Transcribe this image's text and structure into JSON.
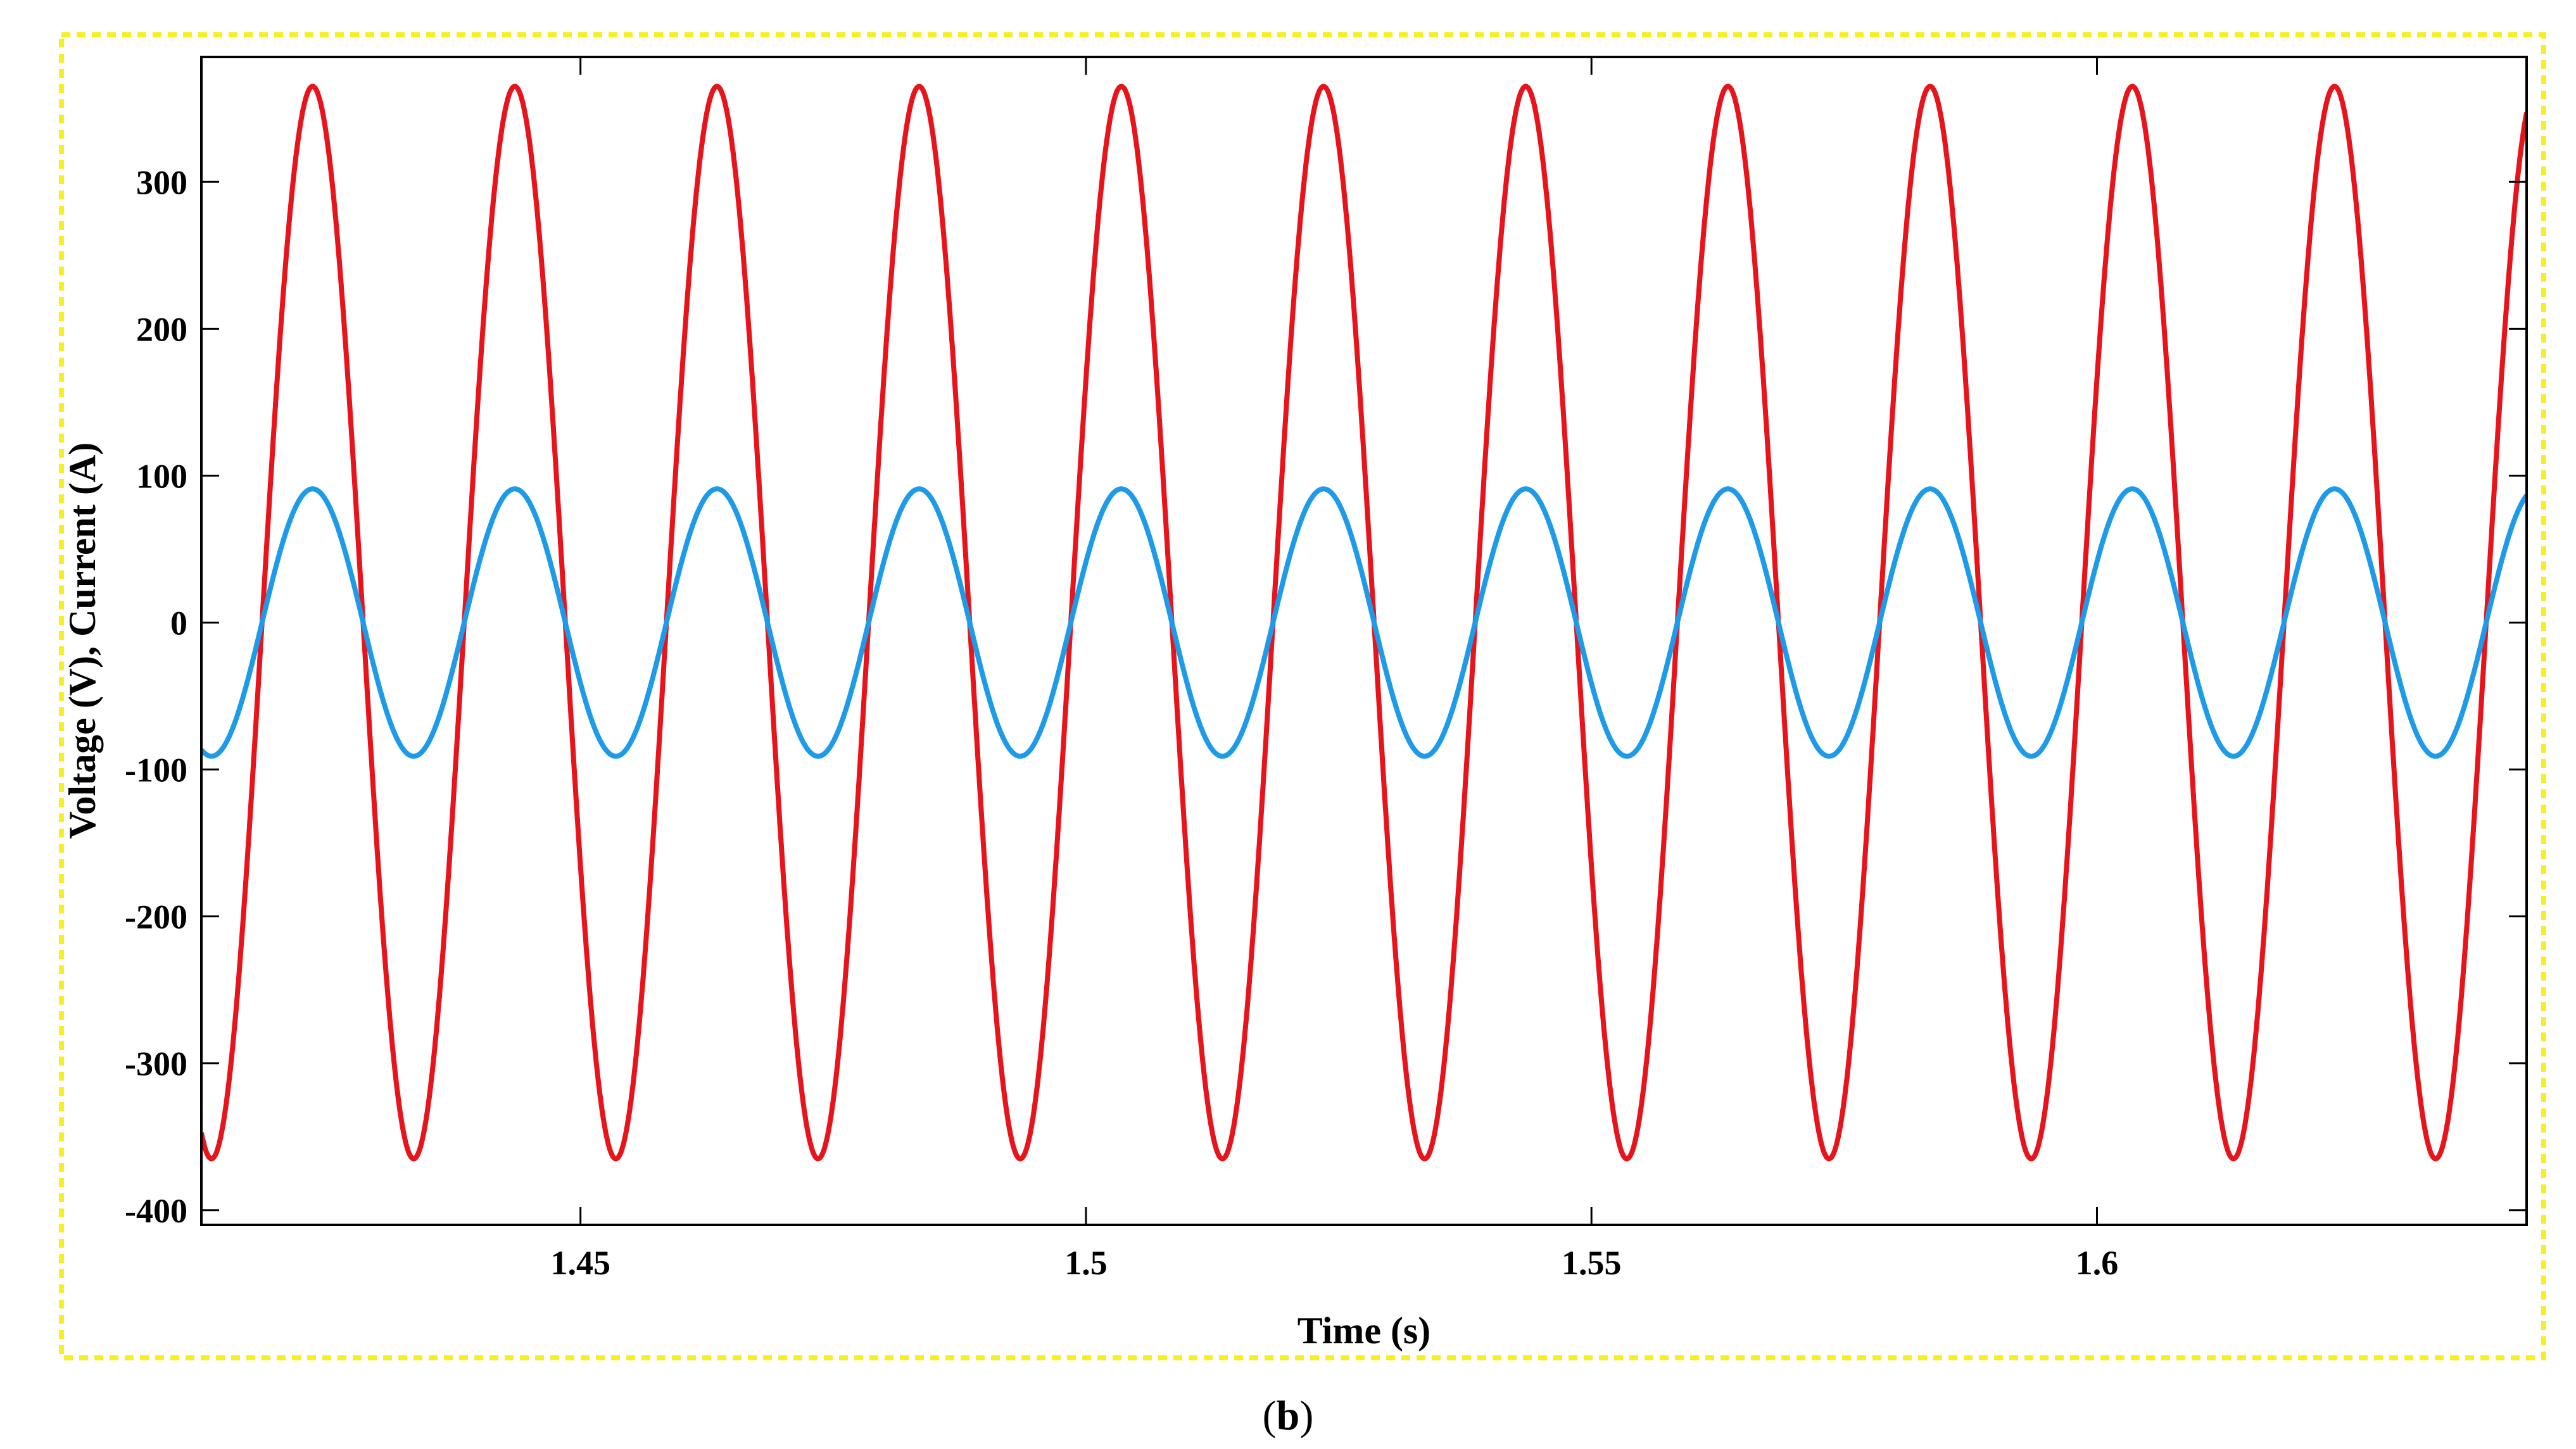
{
  "panel_label": {
    "open": "(",
    "letter": "b",
    "close": ")"
  },
  "colors": {
    "voltage": "#e8141c",
    "current": "#1e9be8",
    "frame_border": "#f5f01e",
    "axes": "#000000"
  },
  "chart_data": {
    "type": "line",
    "xlabel": "Time (s)",
    "ylabel": "Voltage (V), Current (A)",
    "xlim": [
      1.4125,
      1.6425
    ],
    "ylim": [
      -410,
      385
    ],
    "x_ticks": [
      1.45,
      1.5,
      1.55,
      1.6
    ],
    "x_tick_labels": [
      "1.45",
      "1.5",
      "1.55",
      "1.6"
    ],
    "y_ticks": [
      -400,
      -300,
      -200,
      -100,
      0,
      100,
      200,
      300
    ],
    "y_tick_labels": [
      "-400",
      "-300",
      "-200",
      "-100",
      "0",
      "100",
      "200",
      "300"
    ],
    "grid": false,
    "legend": "none",
    "series": [
      {
        "key": "voltage",
        "amplitude": 365,
        "frequency_hz": 50,
        "peak_time_s": 1.4235,
        "color": "#e8141c"
      },
      {
        "key": "current",
        "amplitude": 91,
        "frequency_hz": 50,
        "peak_time_s": 1.4235,
        "phase_lag_s": 0,
        "color": "#1e9be8"
      }
    ]
  }
}
